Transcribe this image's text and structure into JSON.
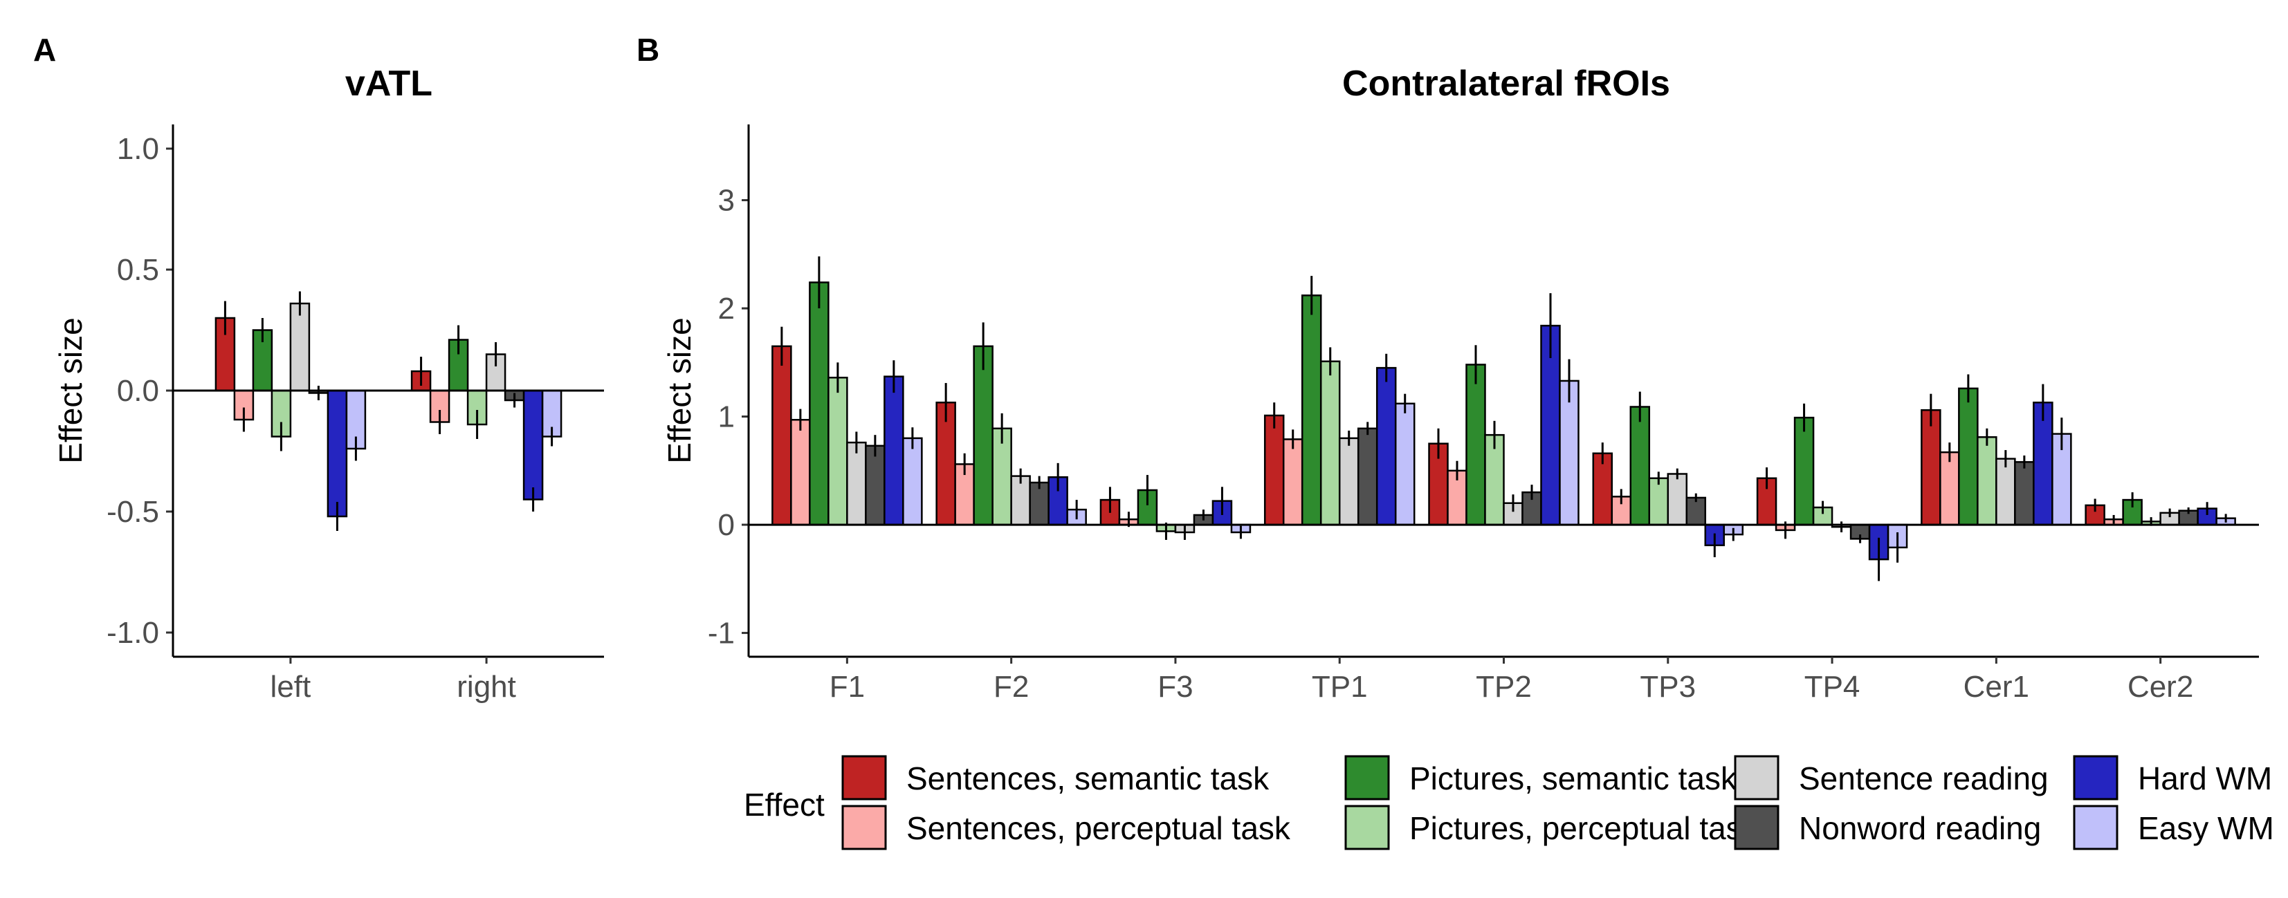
{
  "panels": [
    {
      "letter": "A",
      "title": "vATL",
      "ylabel": "Effect size",
      "yticks": [
        1.0,
        0.5,
        0.0,
        -0.5,
        -1.0
      ],
      "yticklabels": [
        "1.0",
        "0.5",
        "0.0",
        "-0.5",
        "-1.0"
      ]
    },
    {
      "letter": "B",
      "title": "Contralateral fROIs",
      "ylabel": "Effect size",
      "yticks": [
        3,
        2,
        1,
        0,
        -1
      ],
      "yticklabels": [
        "3",
        "2",
        "1",
        "0",
        "-1"
      ]
    }
  ],
  "legend": {
    "title": "Effect",
    "entries": [
      "Sentences, semantic task",
      "Sentences, perceptual task",
      "Pictures, semantic task",
      "Pictures, perceptual task",
      "Sentence reading",
      "Nonword reading",
      "Hard WM",
      "Easy WM"
    ]
  },
  "colors": [
    "#bf2323",
    "#fbaaa8",
    "#2e8b2e",
    "#a8d8a0",
    "#d3d3d3",
    "#505050",
    "#2525c0",
    "#c0c0fa"
  ],
  "chart_data": [
    {
      "type": "bar",
      "title": "vATL",
      "xlabel": "",
      "ylabel": "Effect size",
      "ylim": [
        -1.1,
        1.1
      ],
      "categories": [
        "left",
        "right"
      ],
      "series": [
        {
          "name": "Sentences, semantic task",
          "values": [
            0.3,
            0.08
          ],
          "errors": [
            0.07,
            0.06
          ]
        },
        {
          "name": "Sentences, perceptual task",
          "values": [
            -0.12,
            -0.13
          ],
          "errors": [
            0.05,
            0.05
          ]
        },
        {
          "name": "Pictures, semantic task",
          "values": [
            0.25,
            0.21
          ],
          "errors": [
            0.05,
            0.06
          ]
        },
        {
          "name": "Pictures, perceptual task",
          "values": [
            -0.19,
            -0.14
          ],
          "errors": [
            0.06,
            0.06
          ]
        },
        {
          "name": "Sentence reading",
          "values": [
            0.36,
            0.15
          ],
          "errors": [
            0.05,
            0.05
          ]
        },
        {
          "name": "Nonword reading",
          "values": [
            -0.01,
            -0.04
          ],
          "errors": [
            0.03,
            0.03
          ]
        },
        {
          "name": "Hard WM",
          "values": [
            -0.52,
            -0.45
          ],
          "errors": [
            0.06,
            0.05
          ]
        },
        {
          "name": "Easy WM",
          "values": [
            -0.24,
            -0.19
          ],
          "errors": [
            0.05,
            0.04
          ]
        }
      ]
    },
    {
      "type": "bar",
      "title": "Contralateral fROIs",
      "xlabel": "",
      "ylabel": "Effect size",
      "ylim": [
        -1.22,
        3.7
      ],
      "categories": [
        "F1",
        "F2",
        "F3",
        "TP1",
        "TP2",
        "TP3",
        "TP4",
        "Cer1",
        "Cer2"
      ],
      "series": [
        {
          "name": "Sentences, semantic task",
          "values": [
            1.65,
            1.13,
            0.23,
            1.01,
            0.75,
            0.66,
            0.43,
            1.06,
            0.18
          ],
          "errors": [
            0.18,
            0.18,
            0.12,
            0.12,
            0.14,
            0.1,
            0.1,
            0.15,
            0.06
          ]
        },
        {
          "name": "Sentences, perceptual task",
          "values": [
            0.97,
            0.56,
            0.05,
            0.79,
            0.5,
            0.26,
            -0.05,
            0.67,
            0.05
          ],
          "errors": [
            0.1,
            0.1,
            0.07,
            0.09,
            0.09,
            0.07,
            0.08,
            0.09,
            0.04
          ]
        },
        {
          "name": "Pictures, semantic task",
          "values": [
            2.24,
            1.65,
            0.32,
            2.12,
            1.48,
            1.09,
            0.99,
            1.26,
            0.23
          ],
          "errors": [
            0.24,
            0.22,
            0.14,
            0.18,
            0.18,
            0.14,
            0.13,
            0.13,
            0.07
          ]
        },
        {
          "name": "Pictures, perceptual task",
          "values": [
            1.36,
            0.89,
            -0.06,
            1.51,
            0.83,
            0.43,
            0.16,
            0.81,
            0.03
          ],
          "errors": [
            0.14,
            0.14,
            0.08,
            0.13,
            0.13,
            0.06,
            0.06,
            0.08,
            0.04
          ]
        },
        {
          "name": "Sentence reading",
          "values": [
            0.76,
            0.45,
            -0.07,
            0.8,
            0.2,
            0.47,
            -0.02,
            0.61,
            0.11
          ],
          "errors": [
            0.1,
            0.07,
            0.07,
            0.07,
            0.08,
            0.05,
            0.05,
            0.08,
            0.04
          ]
        },
        {
          "name": "Nonword reading",
          "values": [
            0.73,
            0.39,
            0.09,
            0.89,
            0.3,
            0.25,
            -0.13,
            0.58,
            0.13
          ],
          "errors": [
            0.1,
            0.06,
            0.05,
            0.06,
            0.07,
            0.04,
            0.04,
            0.06,
            0.03
          ]
        },
        {
          "name": "Hard WM",
          "values": [
            1.37,
            0.44,
            0.22,
            1.45,
            1.84,
            -0.19,
            -0.32,
            1.13,
            0.15
          ],
          "errors": [
            0.15,
            0.13,
            0.13,
            0.13,
            0.3,
            0.11,
            0.2,
            0.17,
            0.06
          ]
        },
        {
          "name": "Easy WM",
          "values": [
            0.8,
            0.14,
            -0.07,
            1.12,
            1.33,
            -0.09,
            -0.21,
            0.84,
            0.06
          ],
          "errors": [
            0.1,
            0.09,
            0.06,
            0.09,
            0.2,
            0.06,
            0.14,
            0.15,
            0.04
          ]
        }
      ]
    }
  ]
}
